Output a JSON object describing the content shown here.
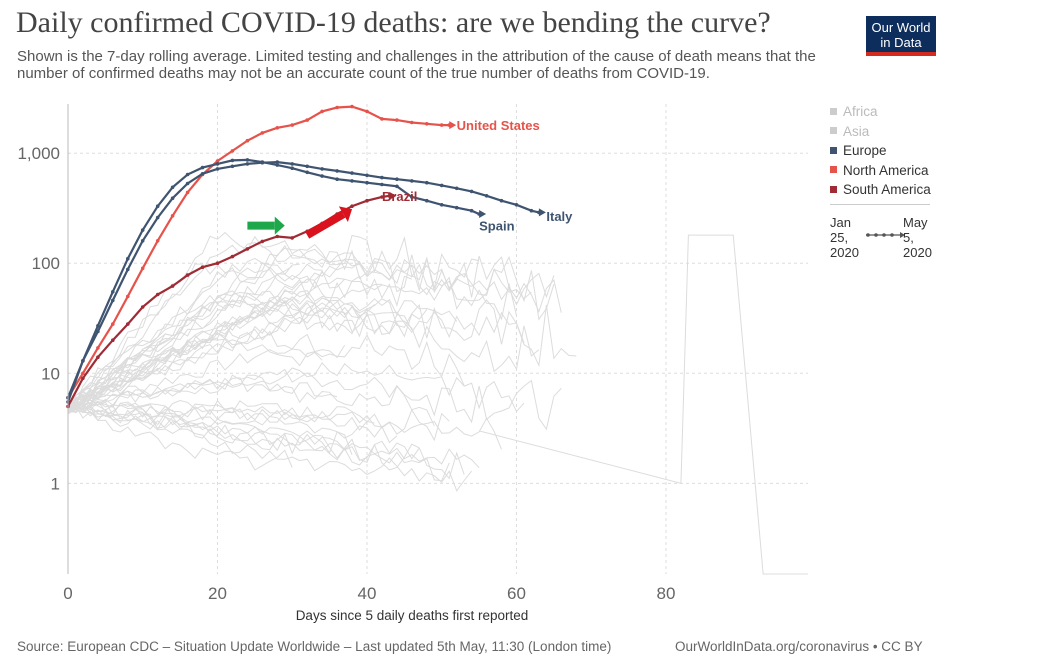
{
  "header": {
    "title": "Daily confirmed COVID-19 deaths: are we bending the curve?",
    "subtitle": "Shown is the 7-day rolling average. Limited testing and challenges in the attribution of the cause of death means that the number of confirmed deaths may not be an accurate count of the true number of deaths from COVID-19.",
    "logo_line1": "Our World",
    "logo_line2": "in Data",
    "brand_color": "#0d2e5c",
    "brand_accent": "#d42b21"
  },
  "legend": {
    "items": [
      {
        "label": "Africa",
        "color": "#cccccc",
        "text_color": "#bbbbbb"
      },
      {
        "label": "Asia",
        "color": "#cccccc",
        "text_color": "#bbbbbb"
      },
      {
        "label": "Europe",
        "color": "#3f5470",
        "text_color": "#333333"
      },
      {
        "label": "North America",
        "color": "#e5534b",
        "text_color": "#333333"
      },
      {
        "label": "South America",
        "color": "#9f2b35",
        "text_color": "#333333"
      }
    ],
    "time_start": [
      "Jan",
      "25,",
      "2020"
    ],
    "time_end": [
      "May",
      "5,",
      "2020"
    ]
  },
  "chart_data": {
    "type": "line",
    "xlabel": "Days since 5 daily deaths first reported",
    "ylabel": "",
    "yscale": "log",
    "xlim": [
      0,
      99
    ],
    "ylim": [
      0.15,
      2800
    ],
    "x_ticks": [
      0,
      20,
      40,
      60,
      80
    ],
    "y_ticks": [
      {
        "value": 1,
        "label": "1"
      },
      {
        "value": 10,
        "label": "10"
      },
      {
        "value": 100,
        "label": "100"
      },
      {
        "value": 1000,
        "label": "1,000"
      }
    ],
    "grid": true,
    "legend_position": "right",
    "series": [
      {
        "name": "United States",
        "color": "#e5534b",
        "label_at": [
          52,
          1800
        ],
        "points": [
          [
            0,
            6
          ],
          [
            2,
            10
          ],
          [
            4,
            17
          ],
          [
            6,
            28
          ],
          [
            8,
            50
          ],
          [
            10,
            90
          ],
          [
            12,
            160
          ],
          [
            14,
            270
          ],
          [
            16,
            440
          ],
          [
            18,
            640
          ],
          [
            20,
            850
          ],
          [
            22,
            1050
          ],
          [
            24,
            1300
          ],
          [
            26,
            1530
          ],
          [
            28,
            1700
          ],
          [
            30,
            1800
          ],
          [
            32,
            2000
          ],
          [
            34,
            2400
          ],
          [
            36,
            2600
          ],
          [
            38,
            2650
          ],
          [
            40,
            2400
          ],
          [
            42,
            2050
          ],
          [
            44,
            2000
          ],
          [
            46,
            1900
          ],
          [
            48,
            1850
          ],
          [
            50,
            1800
          ],
          [
            51,
            1800
          ]
        ]
      },
      {
        "name": "Italy",
        "color": "#3f5470",
        "label_at": [
          64,
          270
        ],
        "points": [
          [
            0,
            6
          ],
          [
            2,
            13
          ],
          [
            4,
            24
          ],
          [
            6,
            46
          ],
          [
            8,
            88
          ],
          [
            10,
            160
          ],
          [
            12,
            260
          ],
          [
            14,
            390
          ],
          [
            16,
            530
          ],
          [
            18,
            650
          ],
          [
            20,
            720
          ],
          [
            22,
            760
          ],
          [
            24,
            800
          ],
          [
            26,
            820
          ],
          [
            28,
            830
          ],
          [
            30,
            800
          ],
          [
            32,
            760
          ],
          [
            34,
            720
          ],
          [
            36,
            690
          ],
          [
            38,
            660
          ],
          [
            40,
            630
          ],
          [
            42,
            600
          ],
          [
            44,
            580
          ],
          [
            46,
            560
          ],
          [
            48,
            540
          ],
          [
            50,
            510
          ],
          [
            52,
            480
          ],
          [
            54,
            450
          ],
          [
            56,
            410
          ],
          [
            58,
            370
          ],
          [
            60,
            340
          ],
          [
            62,
            300
          ],
          [
            63,
            290
          ]
        ]
      },
      {
        "name": "Spain",
        "color": "#3f5470",
        "label_at": [
          55,
          220
        ],
        "points": [
          [
            0,
            5.5
          ],
          [
            2,
            13
          ],
          [
            4,
            27
          ],
          [
            6,
            55
          ],
          [
            8,
            110
          ],
          [
            10,
            200
          ],
          [
            12,
            330
          ],
          [
            14,
            490
          ],
          [
            16,
            640
          ],
          [
            18,
            740
          ],
          [
            20,
            800
          ],
          [
            22,
            860
          ],
          [
            24,
            870
          ],
          [
            26,
            830
          ],
          [
            28,
            780
          ],
          [
            30,
            730
          ],
          [
            32,
            670
          ],
          [
            34,
            620
          ],
          [
            36,
            580
          ],
          [
            38,
            560
          ],
          [
            40,
            540
          ],
          [
            42,
            520
          ],
          [
            44,
            500
          ],
          [
            46,
            400
          ],
          [
            48,
            370
          ],
          [
            50,
            340
          ],
          [
            52,
            320
          ],
          [
            54,
            300
          ],
          [
            55,
            280
          ]
        ]
      },
      {
        "name": "Brazil",
        "color": "#9f2b35",
        "label_at": [
          42,
          410
        ],
        "points": [
          [
            0,
            5
          ],
          [
            2,
            9
          ],
          [
            4,
            14
          ],
          [
            6,
            20
          ],
          [
            8,
            28
          ],
          [
            10,
            40
          ],
          [
            12,
            52
          ],
          [
            14,
            62
          ],
          [
            16,
            78
          ],
          [
            18,
            92
          ],
          [
            20,
            100
          ],
          [
            22,
            115
          ],
          [
            24,
            135
          ],
          [
            26,
            158
          ],
          [
            28,
            175
          ],
          [
            30,
            170
          ],
          [
            32,
            195
          ],
          [
            34,
            230
          ],
          [
            36,
            280
          ],
          [
            38,
            330
          ],
          [
            40,
            370
          ],
          [
            42,
            400
          ],
          [
            43,
            410
          ]
        ]
      }
    ],
    "annotations": [
      {
        "type": "arrow",
        "color": "#1fa84b",
        "from": [
          24,
          220
        ],
        "to": [
          29,
          220
        ]
      },
      {
        "type": "arrow",
        "color": "#d9121e",
        "from": [
          32,
          180
        ],
        "to": [
          38,
          310
        ]
      }
    ]
  },
  "footer": {
    "source": "Source: European CDC – Situation Update Worldwide – Last updated 5th May, 11:30 (London time)",
    "site": "OurWorldInData.org/coronavirus • CC BY"
  }
}
